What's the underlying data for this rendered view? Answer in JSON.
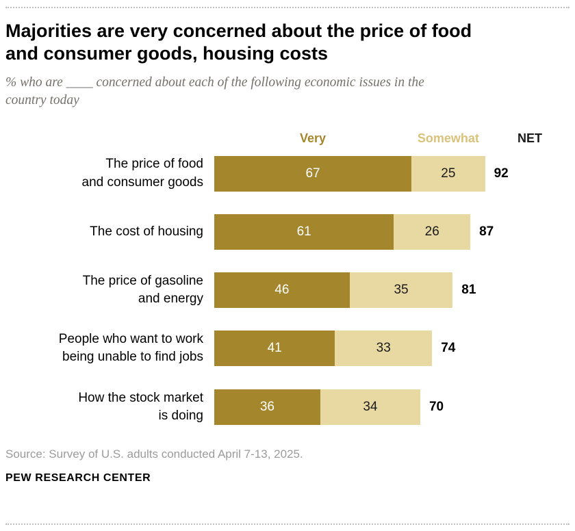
{
  "header": {
    "title": "Majorities are very concerned about the price of food\nand consumer goods, housing costs",
    "subtitle": "% who are ____ concerned about each of the following economic issues in the\ncountry today"
  },
  "legend": {
    "very": "Very",
    "somewhat": "Somewhat",
    "net": "NET"
  },
  "chart_data": {
    "type": "bar",
    "orientation": "horizontal",
    "stacked": true,
    "xlim": [
      0,
      100
    ],
    "categories": [
      "The price of food\nand consumer goods",
      "The cost of housing",
      "The price of gasoline\nand energy",
      "People who want to work\nbeing unable to find jobs",
      "How the stock market\nis doing"
    ],
    "series": [
      {
        "name": "Very",
        "values": [
          67,
          61,
          46,
          41,
          36
        ]
      },
      {
        "name": "Somewhat",
        "values": [
          25,
          26,
          35,
          33,
          34
        ]
      }
    ],
    "net": [
      92,
      87,
      81,
      74,
      70
    ],
    "colors": {
      "very": "#a4862c",
      "somewhat": "#e8d9a3",
      "somewhat_label": "#d9c27a"
    }
  },
  "footer": {
    "source": "Source: Survey of U.S. adults conducted April 7-13, 2025.",
    "brand": "PEW RESEARCH CENTER"
  }
}
